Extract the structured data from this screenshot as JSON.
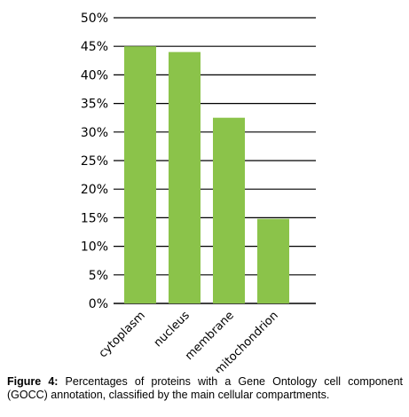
{
  "chart_data": {
    "type": "bar",
    "categories": [
      "cytoplasm",
      "nucleus",
      "membrane",
      "mitochondrion"
    ],
    "values": [
      45,
      44,
      32.5,
      14.8
    ],
    "ylim": [
      0,
      50
    ],
    "yticks": [
      "0%",
      "5%",
      "10%",
      "15%",
      "20%",
      "25%",
      "30%",
      "35%",
      "40%",
      "45%",
      "50%"
    ],
    "grid": true,
    "bar_color": "#8bc34a"
  },
  "caption": {
    "label": "Figure 4:",
    "text": " Percentages of proteins with a Gene Ontology cell component (GOCC) annotation, classified by the main cellular compartments."
  }
}
